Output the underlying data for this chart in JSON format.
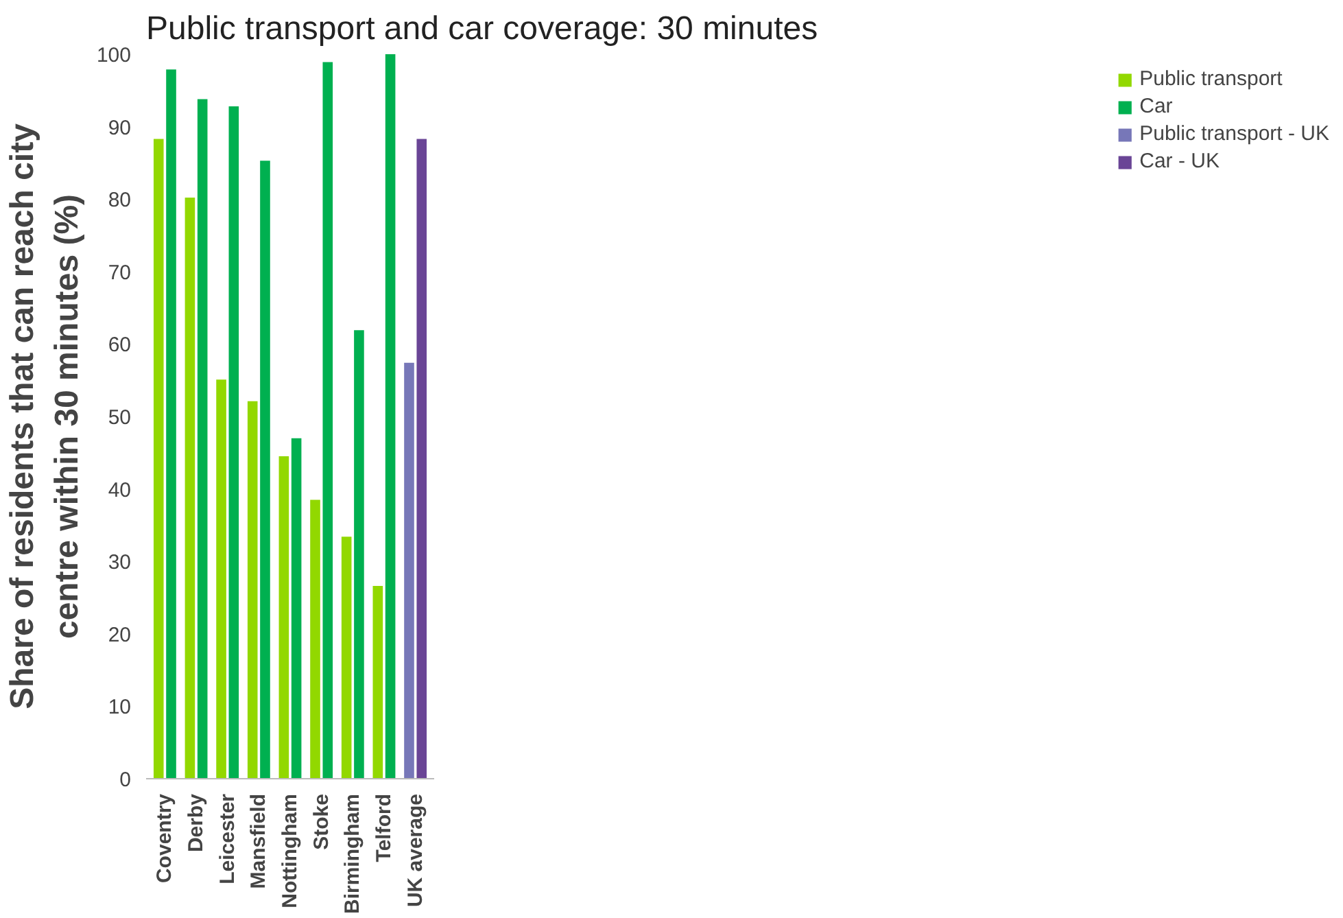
{
  "chart_data": {
    "type": "bar",
    "title": "Public transport and car coverage: 30 minutes",
    "ylabel": "Share of residents that can reach city\ncentre within 30 minutes (%)",
    "categories": [
      "Coventry",
      "Derby",
      "Leicester",
      "Mansfield",
      "Nottingham",
      "Stoke",
      "Birmingham",
      "Telford",
      "UK average"
    ],
    "series": [
      {
        "name": "Public transport",
        "color": "#92d800",
        "values": [
          88.3,
          80.2,
          55.1,
          52.1,
          44.5,
          38.5,
          33.4,
          26.6,
          null
        ]
      },
      {
        "name": "Car",
        "color": "#00b050",
        "values": [
          97.9,
          93.8,
          92.8,
          85.3,
          47.0,
          98.9,
          61.9,
          100,
          null
        ]
      },
      {
        "name": "Public transport - UK",
        "color": "#7777b8",
        "values": [
          null,
          null,
          null,
          null,
          null,
          null,
          null,
          null,
          57.4
        ]
      },
      {
        "name": "Car - UK",
        "color": "#6a4596",
        "values": [
          null,
          null,
          null,
          null,
          null,
          null,
          null,
          null,
          88.3
        ]
      }
    ],
    "ylim": [
      0,
      100
    ],
    "yticks": [
      0,
      10,
      20,
      30,
      40,
      50,
      60,
      70,
      80,
      90,
      100
    ],
    "grid": false,
    "legend": "top right"
  }
}
